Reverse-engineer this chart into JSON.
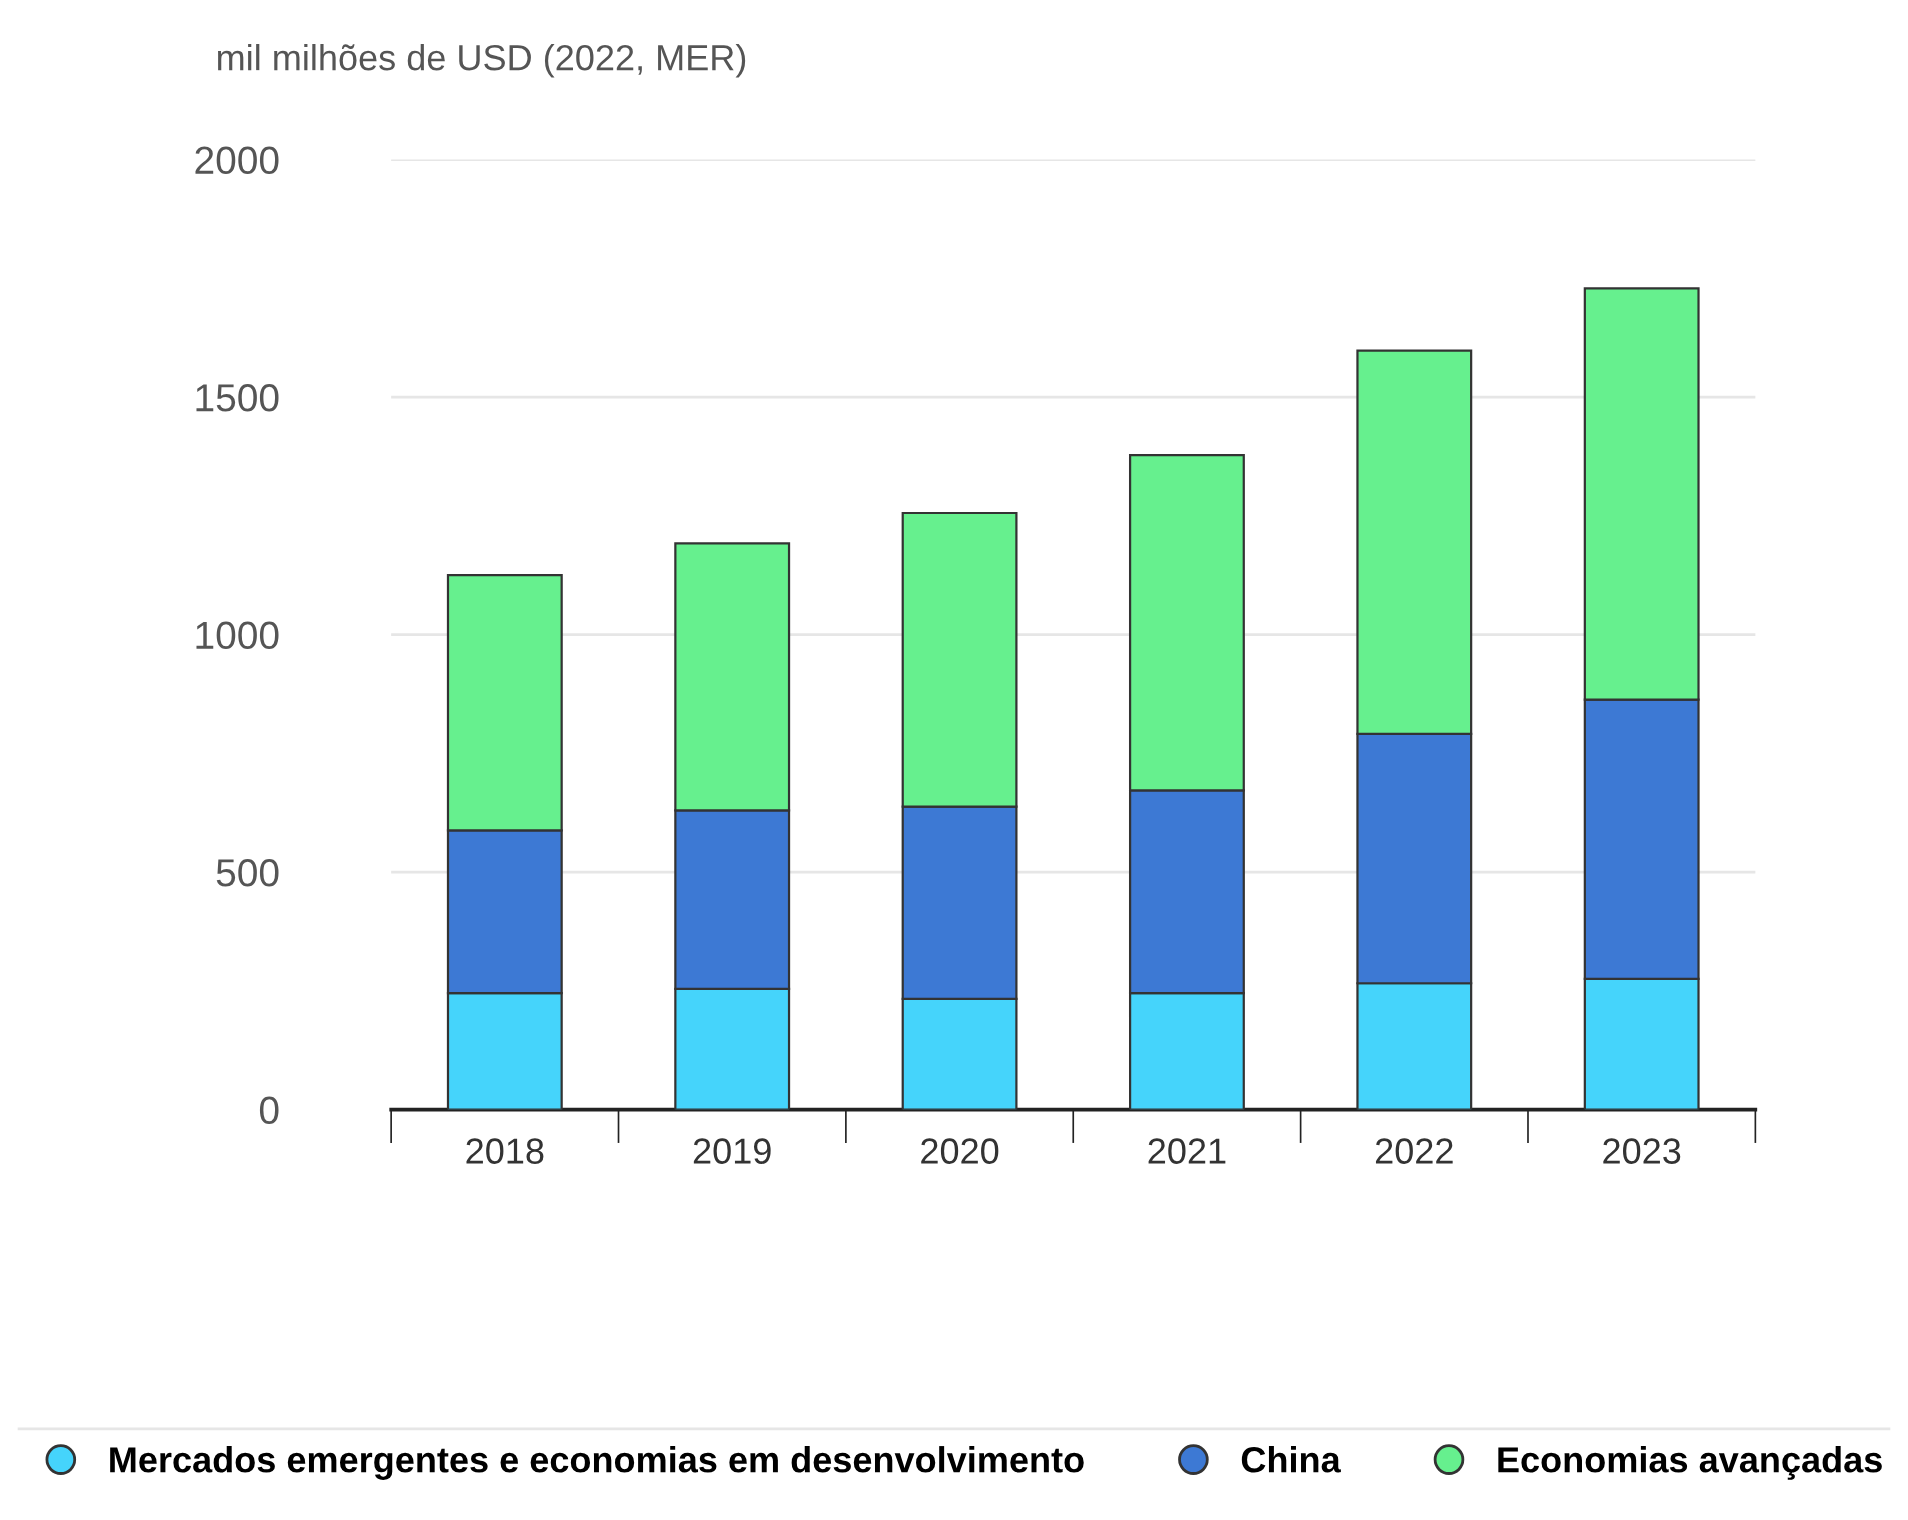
{
  "chart_data": {
    "type": "bar",
    "ylabel": "mil milhões de USD (2022, MER)",
    "categories": [
      "2018",
      "2019",
      "2020",
      "2021",
      "2022",
      "2023"
    ],
    "stacked": true,
    "series": [
      {
        "name": "Mercados emergentes e economias em desenvolvimento",
        "color": "#45d4fb",
        "values": [
          245,
          254,
          233,
          245,
          266,
          275
        ]
      },
      {
        "name": "China",
        "color": "#3d79d4",
        "values": [
          343,
          376,
          405,
          427,
          525,
          588
        ]
      },
      {
        "name": "Economias avançadas",
        "color": "#66f08e",
        "values": [
          537,
          562,
          618,
          706,
          807,
          866
        ]
      }
    ],
    "ylim": [
      0,
      2000
    ],
    "yticks": [
      0,
      500,
      1000,
      1500,
      2000
    ],
    "grid": "y",
    "legend": "bottom"
  }
}
